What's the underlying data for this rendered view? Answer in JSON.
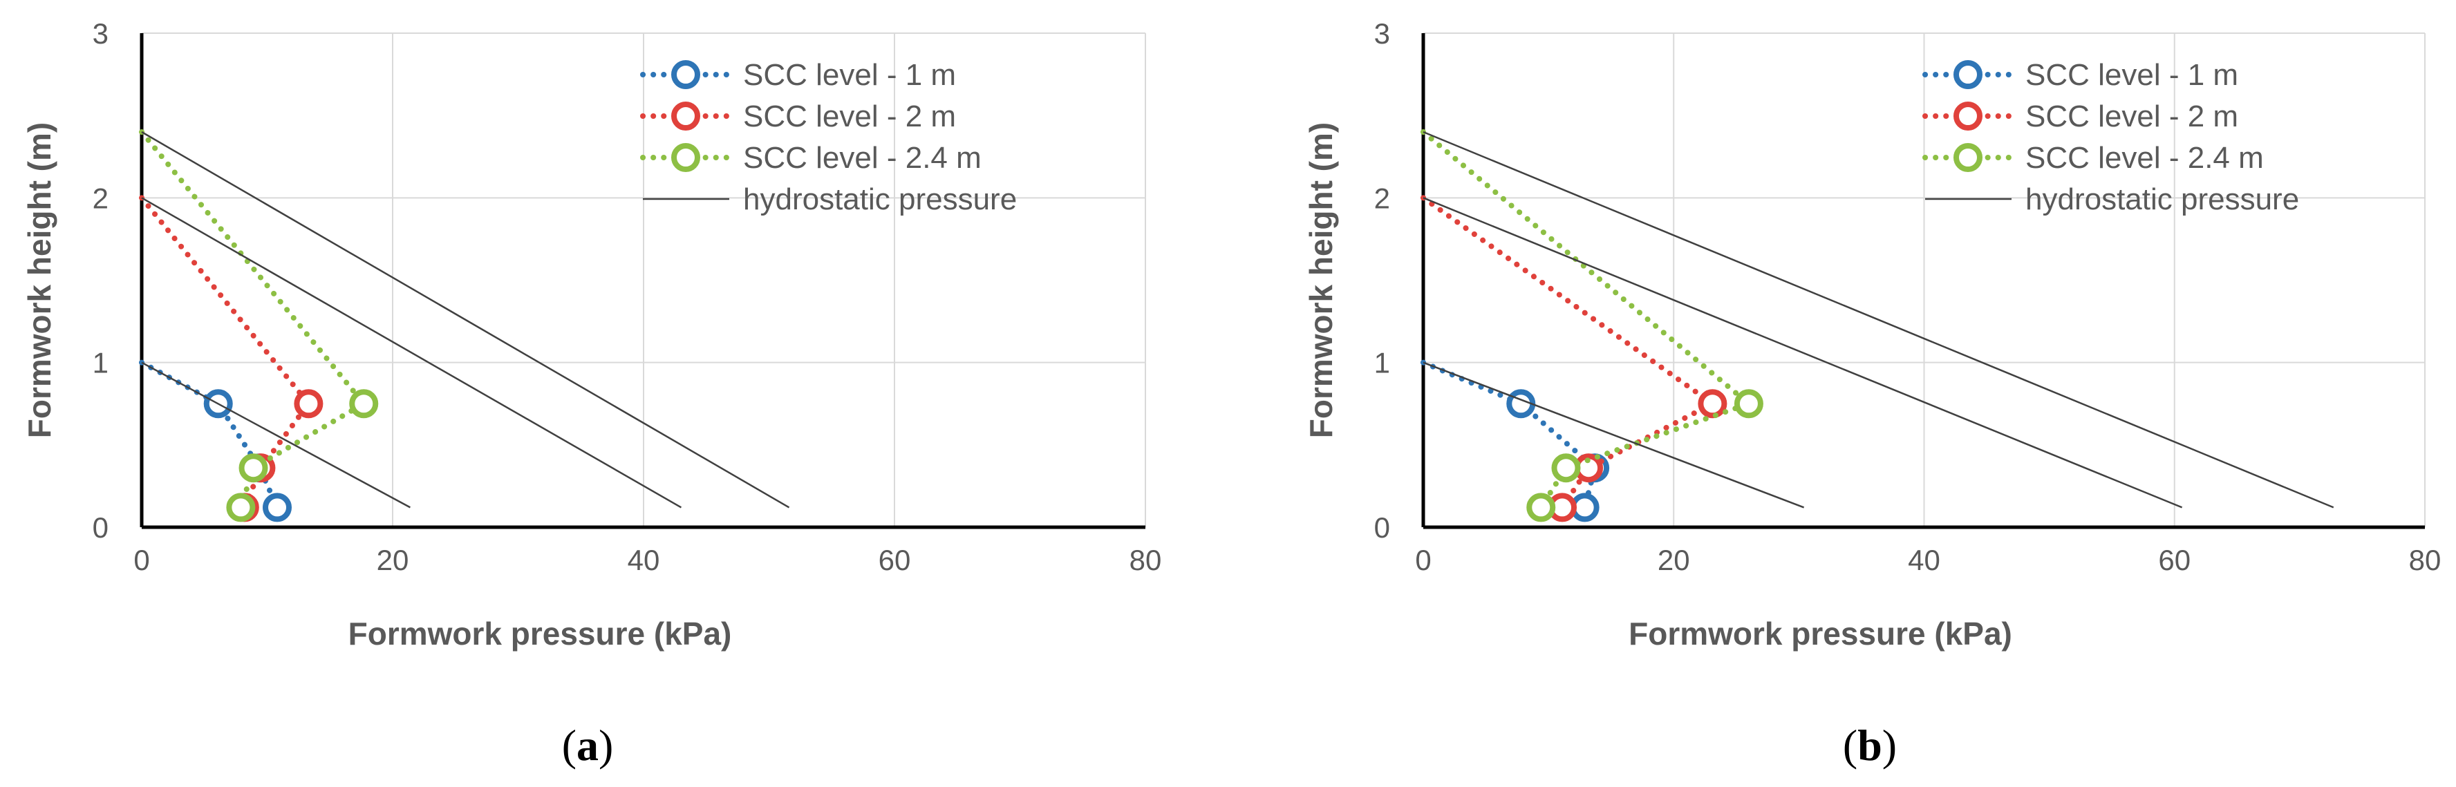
{
  "figure": {
    "panels": [
      "a",
      "b"
    ]
  },
  "chart_data": [
    {
      "type": "line",
      "panel": "a",
      "caption_open": "(",
      "caption_letter": "a",
      "caption_close": ")",
      "title": "",
      "xlabel": "Formwork pressure (kPa)",
      "ylabel": "Formwork height (m)",
      "xlim": [
        0,
        80
      ],
      "ylim": [
        0,
        3
      ],
      "xticks": [
        0,
        20,
        40,
        60,
        80
      ],
      "yticks": [
        0,
        1,
        2,
        3
      ],
      "grid": true,
      "legend": "top-right",
      "series": [
        {
          "name": "SCC level - 1 m",
          "color": "#2E75B6",
          "style": "dotted-markers",
          "points": [
            [
              0,
              1.0
            ],
            [
              6.1,
              0.75
            ],
            [
              9.4,
              0.36
            ],
            [
              10.8,
              0.12
            ]
          ]
        },
        {
          "name": "SCC level - 2 m",
          "color": "#E0413B",
          "style": "dotted-markers",
          "points": [
            [
              0,
              2.0
            ],
            [
              13.3,
              0.75
            ],
            [
              9.5,
              0.36
            ],
            [
              8.2,
              0.12
            ]
          ]
        },
        {
          "name": "SCC level - 2.4 m",
          "color": "#8DBF44",
          "style": "dotted-markers",
          "points": [
            [
              0,
              2.4
            ],
            [
              17.7,
              0.75
            ],
            [
              8.9,
              0.36
            ],
            [
              7.9,
              0.12
            ]
          ]
        },
        {
          "name": "hydrostatic pressure",
          "color": "#404040",
          "style": "solid",
          "lines": [
            [
              [
                0,
                1.0
              ],
              [
                21.4,
                0.12
              ]
            ],
            [
              [
                0,
                2.0
              ],
              [
                43.0,
                0.12
              ]
            ],
            [
              [
                0,
                2.4
              ],
              [
                51.6,
                0.12
              ]
            ]
          ]
        }
      ]
    },
    {
      "type": "line",
      "panel": "b",
      "caption_open": "(",
      "caption_letter": "b",
      "caption_close": ")",
      "title": "",
      "xlabel": "Formwork pressure (kPa)",
      "ylabel": "Formwork height (m)",
      "xlim": [
        0,
        80
      ],
      "ylim": [
        0,
        3
      ],
      "xticks": [
        0,
        20,
        40,
        60,
        80
      ],
      "yticks": [
        0,
        1,
        2,
        3
      ],
      "grid": true,
      "legend": "top-right",
      "series": [
        {
          "name": "SCC level - 1 m",
          "color": "#2E75B6",
          "style": "dotted-markers",
          "points": [
            [
              0,
              1.0
            ],
            [
              7.8,
              0.75
            ],
            [
              13.7,
              0.36
            ],
            [
              12.9,
              0.12
            ]
          ]
        },
        {
          "name": "SCC level - 2 m",
          "color": "#E0413B",
          "style": "dotted-markers",
          "points": [
            [
              0,
              2.0
            ],
            [
              23.1,
              0.75
            ],
            [
              13.2,
              0.36
            ],
            [
              11.1,
              0.12
            ]
          ]
        },
        {
          "name": "SCC level - 2.4 m",
          "color": "#8DBF44",
          "style": "dotted-markers",
          "points": [
            [
              0,
              2.4
            ],
            [
              26.0,
              0.75
            ],
            [
              11.4,
              0.36
            ],
            [
              9.4,
              0.12
            ]
          ]
        },
        {
          "name": "hydrostatic pressure",
          "color": "#404040",
          "style": "solid",
          "lines": [
            [
              [
                0,
                1.0
              ],
              [
                30.4,
                0.12
              ]
            ],
            [
              [
                0,
                2.0
              ],
              [
                60.6,
                0.12
              ]
            ],
            [
              [
                0,
                2.4
              ],
              [
                72.7,
                0.12
              ]
            ]
          ]
        }
      ]
    }
  ]
}
